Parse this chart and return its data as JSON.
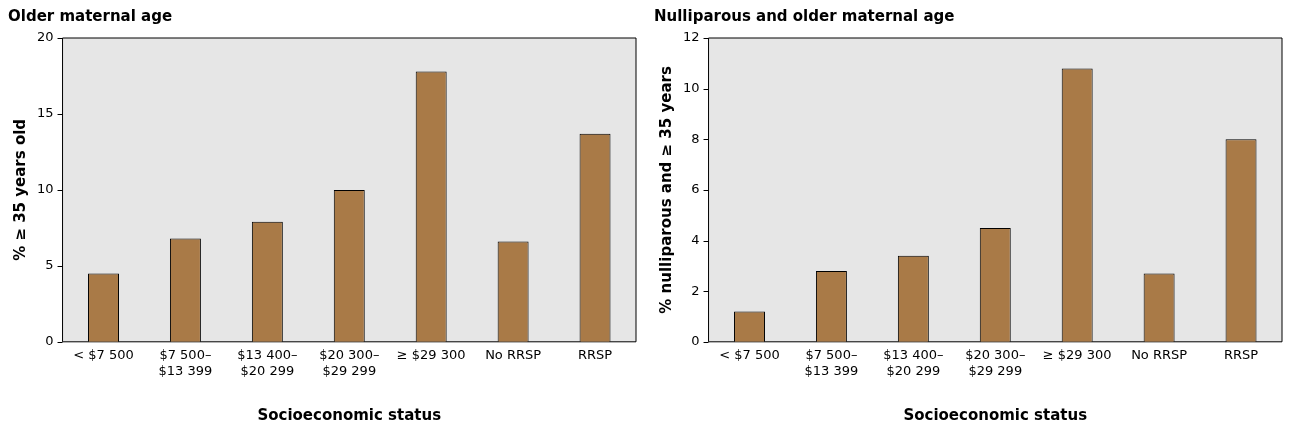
{
  "chart_data": [
    {
      "type": "bar",
      "title": "Older maternal age",
      "xlabel": "Socioeconomic status",
      "ylabel": "% ≥ 35 years old",
      "categories": [
        "< $7 500",
        "$7 500–$13 399",
        "$13 400–$20 299",
        "$20 300–$29 299",
        "≥ $29 300",
        "No RRSP",
        "RRSP"
      ],
      "values": [
        4.5,
        6.8,
        7.9,
        10.0,
        17.8,
        6.6,
        13.7
      ],
      "color": "#a97a47",
      "ylim": [
        0,
        20
      ],
      "yticks": [
        0,
        5,
        10,
        15,
        20
      ],
      "grid": false,
      "legend": false
    },
    {
      "type": "bar",
      "title": "Nulliparous and older maternal age",
      "xlabel": "Socioeconomic status",
      "ylabel": "% nulliparous and ≥ 35 years",
      "categories": [
        "< $7 500",
        "$7 500–$13 399",
        "$13 400–$20 299",
        "$20 300–$29 299",
        "≥ $29 300",
        "No RRSP",
        "RRSP"
      ],
      "values": [
        1.2,
        2.8,
        3.4,
        4.5,
        10.8,
        2.7,
        8.0
      ],
      "color": "#a97a47",
      "ylim": [
        0,
        12
      ],
      "yticks": [
        0,
        2,
        4,
        6,
        8,
        10,
        12
      ],
      "grid": false,
      "legend": false
    }
  ]
}
